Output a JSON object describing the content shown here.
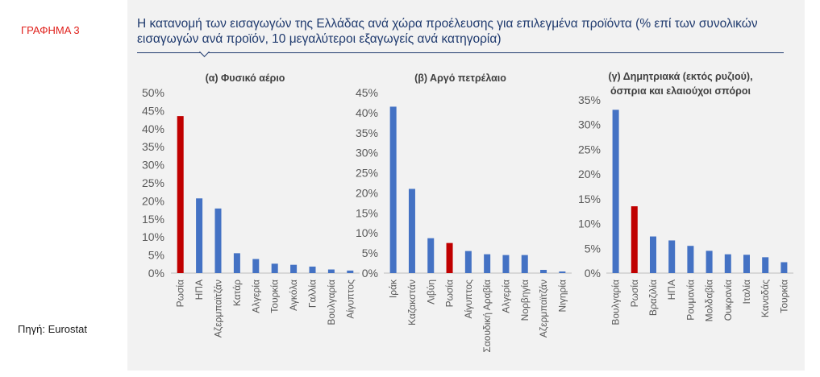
{
  "figure_label": "ΓΡΑΦΗΜΑ 3",
  "source": "Πηγή: Eurostat",
  "title": "Η κατανομή των εισαγωγών της Ελλάδας ανά χώρα προέλευσης για επιλεγμένα προϊόντα (% επί των συνολικών εισαγωγών ανά προϊόν, 10 μεγαλύτεροι εξαγωγείς ανά κατηγορία)",
  "colors": {
    "bar": "#4472c4",
    "highlight": "#c00000",
    "title": "#1f3a6e",
    "axis_text": "#595959"
  },
  "chart_data": [
    {
      "type": "bar",
      "title": "(α) Φυσικό αέριο",
      "categories": [
        "Ρωσία",
        "ΗΠΑ",
        "Αζερμπαϊτζάν",
        "Κατάρ",
        "Αλγερία",
        "Τουρκία",
        "Αγκόλα",
        "Γαλλία",
        "Βουλγαρία",
        "Αίγυπτος"
      ],
      "values": [
        43.5,
        20.7,
        17.9,
        5.5,
        3.9,
        2.6,
        2.3,
        1.8,
        1.0,
        0.7
      ],
      "highlight": [
        "Ρωσία"
      ],
      "yticks": [
        "0%",
        "5%",
        "10%",
        "15%",
        "20%",
        "25%",
        "30%",
        "35%",
        "40%",
        "45%",
        "50%"
      ],
      "ylim": [
        0,
        50
      ]
    },
    {
      "type": "bar",
      "title": "(β) Αργό πετρέλαιο",
      "categories": [
        "Ιράκ",
        "Καζακστάν",
        "Λιβύη",
        "Ρωσία",
        "Αίγυπτος",
        "Σαουδική Αραβία",
        "Αλγερία",
        "Νορβηγία",
        "Αζερμπαϊτζάν",
        "Νιγηρία"
      ],
      "values": [
        41.5,
        21.0,
        8.7,
        7.5,
        5.5,
        4.7,
        4.5,
        4.5,
        0.8,
        0.4
      ],
      "highlight": [
        "Ρωσία"
      ],
      "yticks": [
        "0%",
        "5%",
        "10%",
        "15%",
        "20%",
        "25%",
        "30%",
        "35%",
        "40%",
        "45%"
      ],
      "ylim": [
        0,
        45
      ]
    },
    {
      "type": "bar",
      "title_lines": [
        "(γ) Δημητριακά (εκτός ρυζιού),",
        "όσπρια και ελαιούχοι σπόροι"
      ],
      "categories": [
        "Βουλγαρία",
        "Ρωσία",
        "Βραζιλία",
        "ΗΠΑ",
        "Ρουμανία",
        "Μολδαβία",
        "Ουκρανία",
        "Ιταλία",
        "Καναδάς",
        "Τουρκία"
      ],
      "values": [
        33.0,
        13.5,
        7.4,
        6.6,
        5.5,
        4.5,
        3.8,
        3.7,
        3.2,
        2.2
      ],
      "highlight": [
        "Ρωσία"
      ],
      "yticks": [
        "0%",
        "5%",
        "10%",
        "15%",
        "20%",
        "25%",
        "30%",
        "35%"
      ],
      "ylim": [
        0,
        35
      ]
    }
  ]
}
